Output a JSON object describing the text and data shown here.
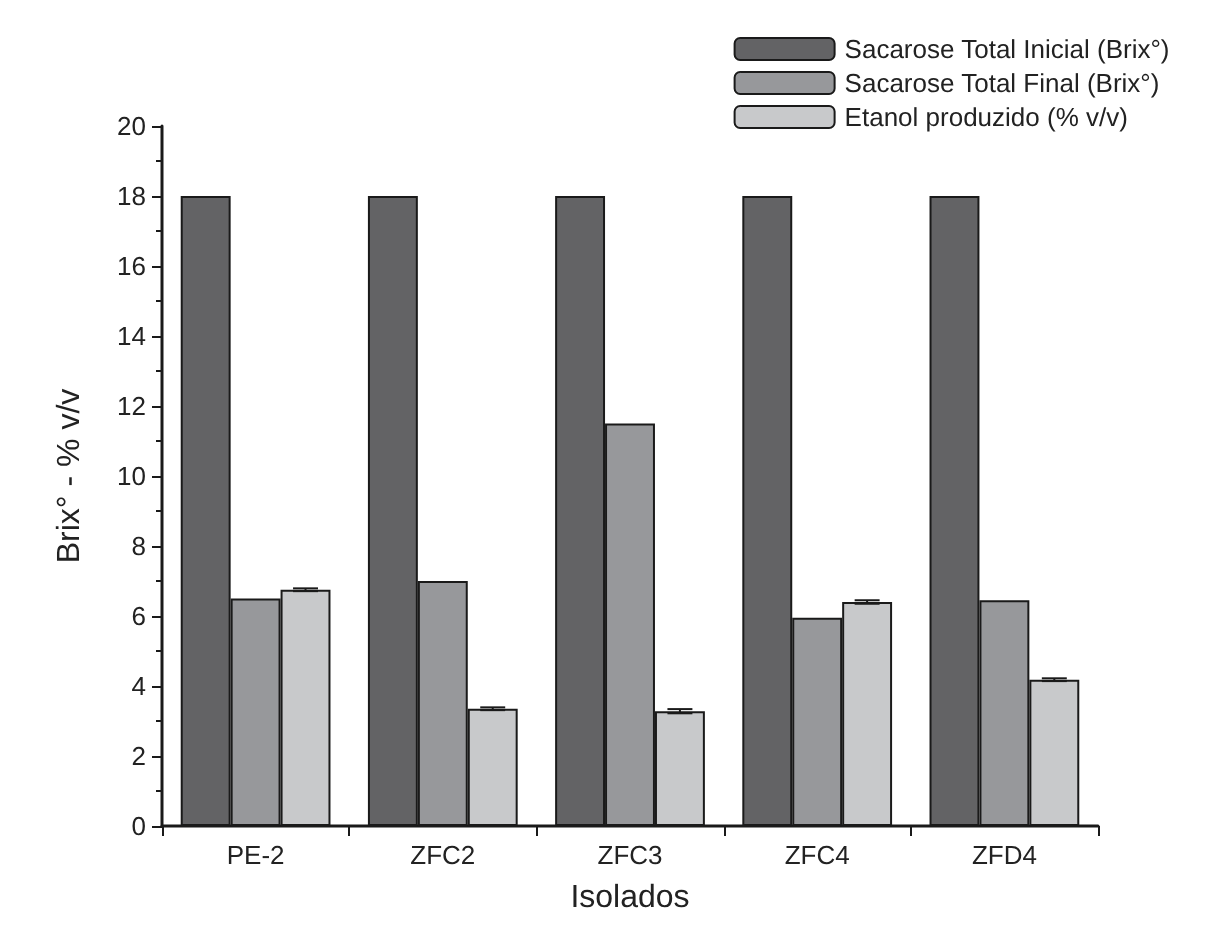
{
  "chart_data": {
    "type": "bar",
    "xlabel": "Isolados",
    "ylabel": "Brix° - % v/v",
    "categories": [
      "PE-2",
      "ZFC2",
      "ZFC3",
      "ZFC4",
      "ZFD4"
    ],
    "series": [
      {
        "name": "Sacarose Total Inicial (Brix°)",
        "color": "#636365",
        "values": [
          18,
          18,
          18,
          18,
          18
        ]
      },
      {
        "name": "Sacarose Total Final (Brix°)",
        "color": "#97989b",
        "values": [
          6.5,
          7.0,
          11.5,
          5.95,
          6.45
        ]
      },
      {
        "name": "Etanol produzido (% v/v)",
        "color": "#c8c9cb",
        "values": [
          6.75,
          3.35,
          3.28,
          6.4,
          4.18
        ],
        "errors": [
          0.04,
          0.04,
          0.06,
          0.05,
          0.04
        ]
      }
    ],
    "ylim": [
      0,
      20
    ],
    "yticks": [
      0,
      2,
      4,
      6,
      8,
      10,
      12,
      14,
      16,
      18,
      20
    ],
    "grid": false,
    "legend": "top right"
  }
}
